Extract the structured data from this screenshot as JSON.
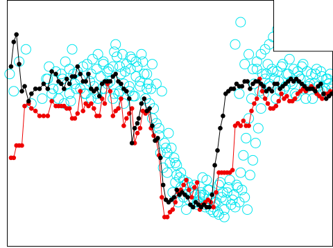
{
  "chart_data": {
    "type": "scatter",
    "title": "",
    "xlabel": "",
    "ylabel": "",
    "grid": false,
    "legend": "none",
    "xlim": [
      0,
      240
    ],
    "ylim": [
      0,
      100
    ],
    "colors": {
      "samples": "#00e5ee",
      "black_line": "#000000",
      "red_line": "#ee0000",
      "frame": "#000000",
      "background": "#ffffff"
    },
    "series": [
      {
        "marker": "open-circle",
        "color": "#00e5ee",
        "x": [
          2,
          5,
          9,
          14,
          18,
          26,
          29,
          31,
          33,
          36,
          38,
          40,
          41,
          43,
          44,
          46,
          47,
          49,
          51,
          52,
          54,
          56,
          57,
          59,
          61,
          62,
          64,
          66,
          67,
          69,
          71,
          72,
          74,
          76,
          78,
          79,
          81,
          83,
          84,
          86,
          88,
          90,
          91,
          93,
          95,
          96,
          98,
          100,
          101,
          103,
          105,
          107,
          108,
          110,
          112,
          113,
          115,
          117,
          118,
          120,
          122,
          124,
          126,
          128,
          130,
          132,
          134,
          136,
          138,
          140,
          142,
          144,
          146,
          148,
          150,
          152,
          154,
          156,
          158,
          160,
          162,
          164,
          166,
          168,
          170,
          172,
          174,
          176,
          178,
          180,
          182,
          184,
          186,
          188,
          190,
          192,
          194,
          196,
          198,
          200,
          202,
          204,
          206,
          208,
          210,
          212,
          214,
          216,
          218,
          220,
          222,
          224,
          226,
          228,
          230,
          232,
          234,
          236,
          238,
          48,
          80,
          85,
          92,
          104,
          114,
          119,
          121,
          123,
          125,
          127,
          131,
          135,
          139,
          141,
          143,
          147,
          149,
          151,
          153,
          157,
          159,
          161,
          163,
          165,
          167,
          169,
          171,
          173,
          175,
          177,
          179,
          181,
          183,
          185,
          187,
          189,
          191,
          193,
          195,
          197,
          199,
          201,
          203,
          205,
          207,
          209,
          211,
          213,
          215,
          217,
          219,
          221,
          223,
          225,
          227,
          229,
          231,
          233,
          235,
          237,
          239,
          181,
          184,
          187,
          190,
          193,
          196,
          199,
          172,
          175,
          178,
          168,
          171,
          110,
          112,
          116,
          118,
          124,
          128,
          133,
          138,
          142,
          146,
          150,
          155,
          160,
          135,
          140,
          145,
          125,
          130,
          152,
          156,
          63,
          67,
          71,
          75,
          79,
          83,
          87,
          91,
          95,
          99,
          103,
          107,
          30,
          34,
          38,
          42,
          46,
          50,
          54,
          58,
          62,
          66,
          70,
          74,
          78,
          82,
          86,
          90,
          94,
          98,
          102,
          106
        ],
        "y": [
          70,
          63,
          75,
          80,
          58,
          60,
          68,
          73,
          62,
          71,
          64,
          70,
          68,
          75,
          66,
          72,
          59,
          70,
          64,
          71,
          68,
          73,
          62,
          74,
          67,
          70,
          65,
          72,
          60,
          69,
          75,
          64,
          71,
          67,
          73,
          62,
          77,
          63,
          70,
          66,
          74,
          65,
          72,
          61,
          69,
          73,
          67,
          75,
          70,
          64,
          58,
          52,
          56,
          50,
          45,
          38,
          32,
          40,
          30,
          34,
          22,
          26,
          18,
          24,
          20,
          15,
          19,
          22,
          25,
          17,
          21,
          28,
          16,
          23,
          19,
          14,
          18,
          25,
          20,
          15,
          22,
          27,
          19,
          16,
          24,
          30,
          37,
          44,
          52,
          60,
          66,
          72,
          63,
          70,
          68,
          74,
          65,
          71,
          60,
          67,
          73,
          64,
          70,
          76,
          66,
          62,
          71,
          68,
          74,
          60,
          65,
          70,
          66,
          72,
          63,
          69,
          64,
          68,
          70,
          80,
          82,
          78,
          76,
          66,
          63,
          46,
          40,
          36,
          33,
          28,
          25,
          24,
          21,
          18,
          22,
          27,
          23,
          20,
          18,
          26,
          22,
          19,
          24,
          17,
          21,
          25,
          18,
          23,
          20,
          15,
          29,
          35,
          42,
          48,
          56,
          62,
          70,
          66,
          72,
          68,
          71,
          63,
          74,
          65,
          70,
          67,
          72,
          61,
          69,
          73,
          64,
          71,
          66,
          60,
          70,
          65,
          71,
          63,
          68,
          66,
          64,
          72,
          75,
          78,
          80,
          82,
          85,
          88,
          91,
          74,
          78,
          82,
          62,
          66,
          48,
          42,
          38,
          34,
          30,
          26,
          22,
          20,
          17,
          15,
          14,
          12,
          24,
          18,
          21,
          29,
          27,
          16,
          13,
          76,
          78,
          74,
          72,
          79,
          73,
          71,
          77,
          75,
          78,
          70,
          74,
          68,
          64,
          60,
          58,
          62,
          66,
          64,
          62,
          60,
          62,
          64,
          66,
          60,
          62,
          58,
          63,
          61,
          65,
          60,
          64
        ]
      },
      {
        "marker": "filled-circle",
        "line": true,
        "color": "#000000",
        "x": [
          3,
          5,
          7,
          9,
          11,
          13,
          16,
          18,
          21,
          24,
          27,
          30,
          33,
          36,
          38,
          40,
          42,
          44,
          46,
          48,
          50,
          52,
          54,
          56,
          58,
          60,
          62,
          64,
          66,
          68,
          70,
          72,
          74,
          76,
          78,
          80,
          82,
          84,
          86,
          88,
          90,
          92,
          94,
          96,
          97,
          99,
          101,
          103,
          105,
          107,
          109,
          111,
          113,
          115,
          117,
          119,
          121,
          123,
          125,
          127,
          129,
          131,
          133,
          135,
          137,
          139,
          141,
          143,
          145,
          147,
          149,
          151,
          153,
          155,
          157,
          159,
          161,
          163,
          165,
          167,
          169,
          171,
          173,
          175,
          177,
          179,
          181,
          183,
          185,
          187,
          189,
          191,
          193,
          195,
          197,
          199,
          201,
          203,
          205,
          207,
          209,
          211,
          213,
          215,
          217,
          219,
          221,
          223,
          225,
          227,
          229,
          231,
          233,
          235,
          237,
          239
        ],
        "y": [
          73,
          83,
          86,
          74,
          63,
          65,
          59,
          62,
          64,
          64,
          66,
          64,
          71,
          70,
          67,
          66,
          64,
          68,
          66,
          69,
          69,
          73,
          70,
          67,
          67,
          70,
          64,
          63,
          64,
          61,
          66,
          67,
          67,
          67,
          69,
          70,
          67,
          66,
          64,
          63,
          60,
          42,
          48,
          50,
          52,
          58,
          60,
          55,
          56,
          49,
          43,
          44,
          36,
          25,
          19,
          18,
          19,
          20,
          23,
          21,
          22,
          21,
          20,
          17,
          16,
          18,
          17,
          16,
          17,
          16,
          16,
          21,
          33,
          39,
          48,
          53,
          62,
          63,
          64,
          64,
          66,
          65,
          65,
          67,
          67,
          64,
          66,
          67,
          67,
          66,
          65,
          63,
          64,
          63,
          66,
          66,
          64,
          65,
          66,
          67,
          68,
          67,
          68,
          67,
          66,
          65,
          64,
          64,
          64,
          63,
          65,
          66,
          62,
          60,
          61,
          62
        ]
      },
      {
        "marker": "filled-circle",
        "line": true,
        "color": "#ee0000",
        "x": [
          3,
          5,
          7,
          9,
          11,
          13,
          16,
          18,
          21,
          24,
          27,
          30,
          33,
          36,
          38,
          40,
          42,
          44,
          46,
          48,
          50,
          52,
          54,
          56,
          58,
          60,
          62,
          64,
          66,
          68,
          70,
          72,
          74,
          76,
          78,
          80,
          82,
          84,
          86,
          88,
          90,
          92,
          94,
          96,
          98,
          100,
          102,
          104,
          106,
          108,
          110,
          112,
          114,
          116,
          118,
          120,
          122,
          124,
          126,
          128,
          130,
          132,
          134,
          136,
          138,
          140,
          142,
          144,
          146,
          148,
          150,
          152,
          154,
          156,
          158,
          160,
          162,
          164,
          166,
          168,
          170,
          172,
          174,
          176,
          178,
          180,
          182,
          184,
          186,
          188,
          190,
          192,
          194,
          196,
          198,
          200,
          202,
          204,
          206,
          208,
          210,
          212,
          214,
          216,
          218,
          220,
          222,
          224,
          226,
          228,
          230,
          232,
          234,
          236,
          238
        ],
        "y": [
          36,
          36,
          41,
          41,
          41,
          57,
          58,
          56,
          55,
          53,
          53,
          53,
          59,
          57,
          57,
          57,
          57,
          56,
          56,
          52,
          52,
          54,
          63,
          55,
          58,
          57,
          58,
          56,
          53,
          53,
          60,
          58,
          66,
          63,
          53,
          55,
          56,
          60,
          49,
          52,
          54,
          56,
          42,
          46,
          48,
          55,
          54,
          55,
          48,
          45,
          43,
          37,
          20,
          12,
          12,
          14,
          15,
          18,
          22,
          23,
          25,
          27,
          23,
          20,
          24,
          26,
          15,
          17,
          18,
          19,
          18,
          16,
          22,
          30,
          30,
          30,
          30,
          30,
          31,
          49,
          50,
          49,
          51,
          49,
          49,
          55,
          58,
          60,
          68,
          63,
          60,
          58,
          56,
          56,
          57,
          59,
          62,
          60,
          61,
          59,
          59,
          60,
          62,
          63,
          64,
          63,
          64,
          65,
          64,
          62,
          61,
          60,
          62,
          62,
          63
        ]
      }
    ]
  },
  "inset_box": {
    "visible": true
  }
}
